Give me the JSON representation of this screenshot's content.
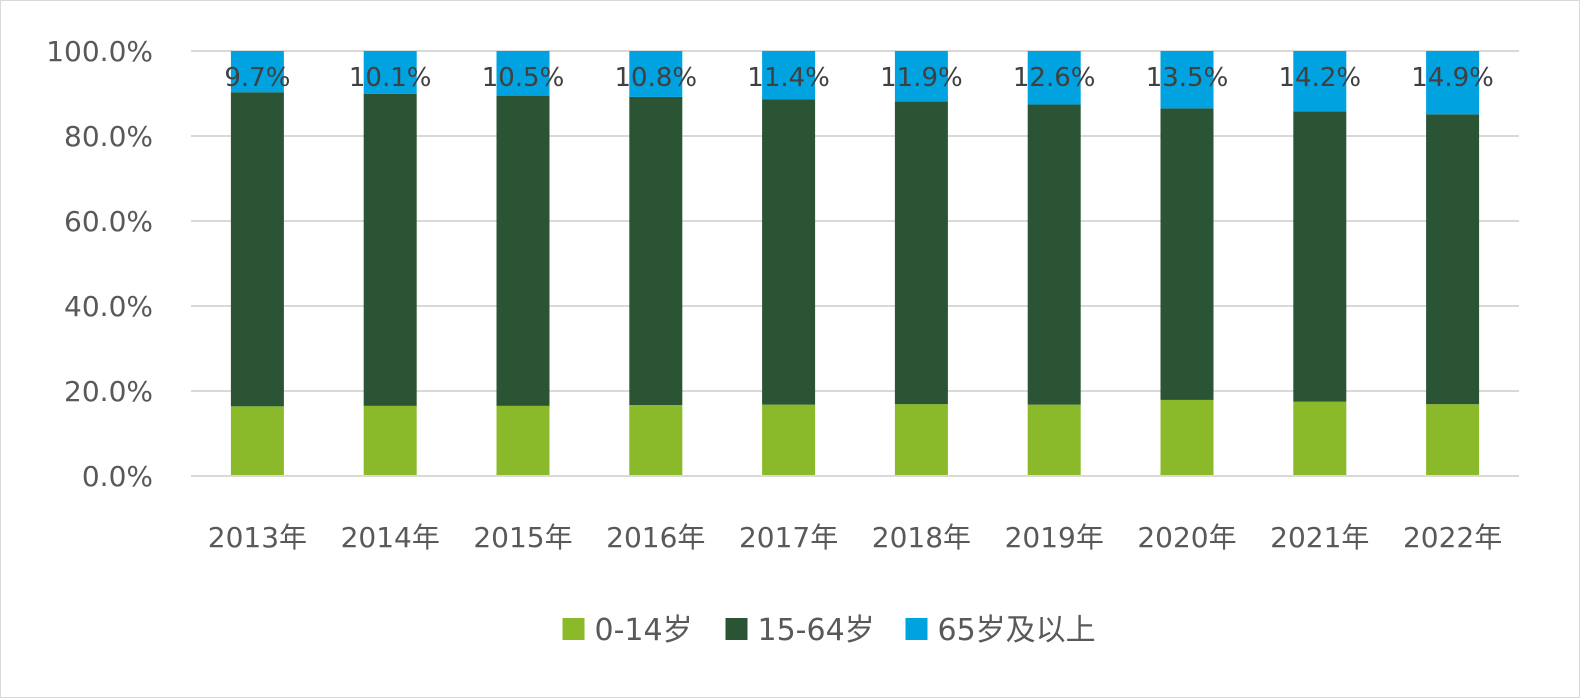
{
  "chart_data": {
    "type": "bar",
    "stacked": true,
    "title": "",
    "xlabel": "",
    "ylabel": "",
    "categories": [
      "2013年",
      "2014年",
      "2015年",
      "2016年",
      "2017年",
      "2018年",
      "2019年",
      "2020年",
      "2021年",
      "2022年"
    ],
    "series": [
      {
        "name": "0-14岁",
        "color": "#8aba2a",
        "values": [
          16.4,
          16.5,
          16.5,
          16.7,
          16.8,
          16.9,
          16.8,
          17.9,
          17.5,
          16.9
        ]
      },
      {
        "name": "15-64岁",
        "color": "#2a5434",
        "values": [
          73.9,
          73.4,
          73.0,
          72.5,
          71.8,
          71.2,
          70.6,
          68.6,
          68.3,
          68.2
        ]
      },
      {
        "name": "65岁及以上",
        "color": "#00a2e0",
        "values": [
          9.7,
          10.1,
          10.5,
          10.8,
          11.4,
          11.9,
          12.6,
          13.5,
          14.2,
          14.9
        ]
      }
    ],
    "data_labels": {
      "series": "65岁及以上",
      "texts": [
        "9.7%",
        "10.1%",
        "10.5%",
        "10.8%",
        "11.4%",
        "11.9%",
        "12.6%",
        "13.5%",
        "14.2%",
        "14.9%"
      ]
    },
    "y_ticks": [
      "0.0%",
      "20.0%",
      "40.0%",
      "60.0%",
      "80.0%",
      "100.0%"
    ],
    "ylim": [
      0,
      100
    ],
    "grid": true,
    "legend_position": "bottom",
    "colors": {
      "grid": "#d9d9d9",
      "axis": "#d9d9d9",
      "text": "#595959"
    }
  }
}
